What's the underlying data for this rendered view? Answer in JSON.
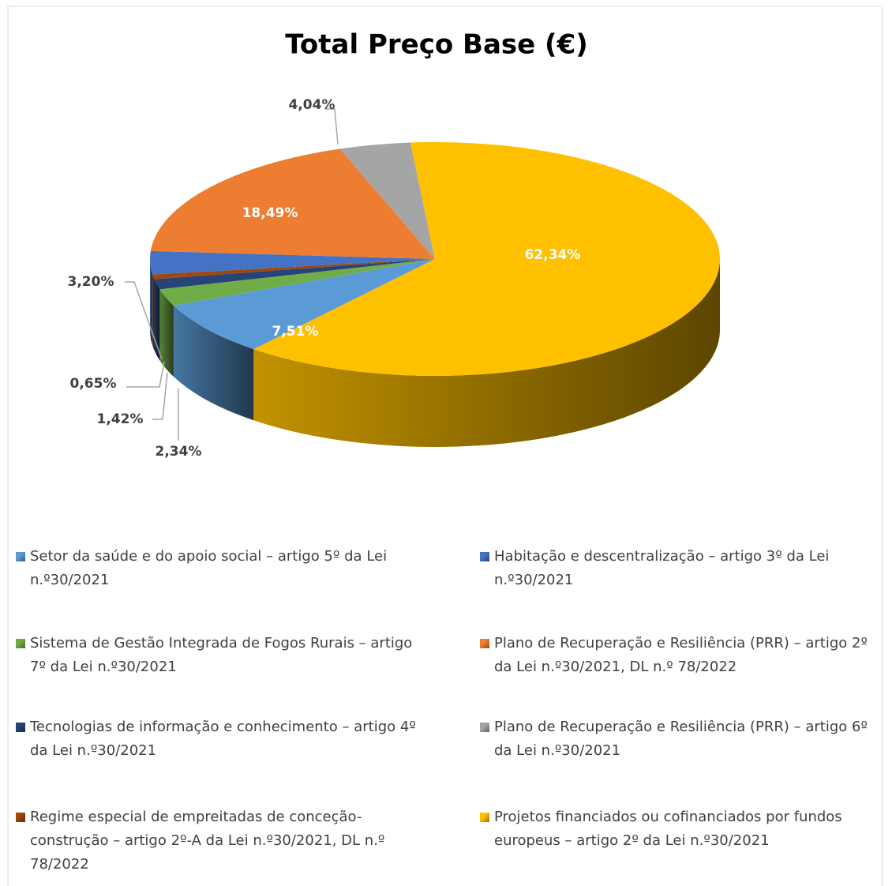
{
  "chart_data": {
    "type": "pie",
    "title": "Total Preço Base (€)",
    "categories": [
      "Setor da saúde e do apoio social – artigo 5º da Lei n.º30/2021",
      "Sistema de Gestão Integrada de Fogos Rurais – artigo 7º da Lei n.º30/2021",
      "Tecnologias de informação e conhecimento – artigo 4º da Lei n.º30/2021",
      "Regime especial de empreitadas de conceção-construção – artigo 2º-A da Lei n.º30/2021, DL n.º 78/2022",
      "Habitação e descentralização – artigo 3º da Lei n.º30/2021",
      "Plano de Recuperação e Resiliência (PRR) – artigo 2º da Lei n.º30/2021, DL n.º 78/2022",
      "Plano de Recuperação e Resiliência (PRR) – artigo 6º da Lei n.º30/2021",
      "Projetos financiados ou cofinanciados por fundos europeus – artigo 2º da Lei n.º30/2021"
    ],
    "values": [
      7.51,
      2.34,
      1.42,
      0.65,
      3.2,
      18.49,
      4.04,
      62.34
    ],
    "value_labels": [
      "7,51%",
      "2,34%",
      "1,42%",
      "0,65%",
      "3,20%",
      "18,49%",
      "4,04%",
      "62,34%"
    ],
    "colors": [
      "#5b9bd5",
      "#70ad47",
      "#264478",
      "#9e480e",
      "#4472c4",
      "#ed7d31",
      "#a5a5a5",
      "#ffc000"
    ]
  }
}
